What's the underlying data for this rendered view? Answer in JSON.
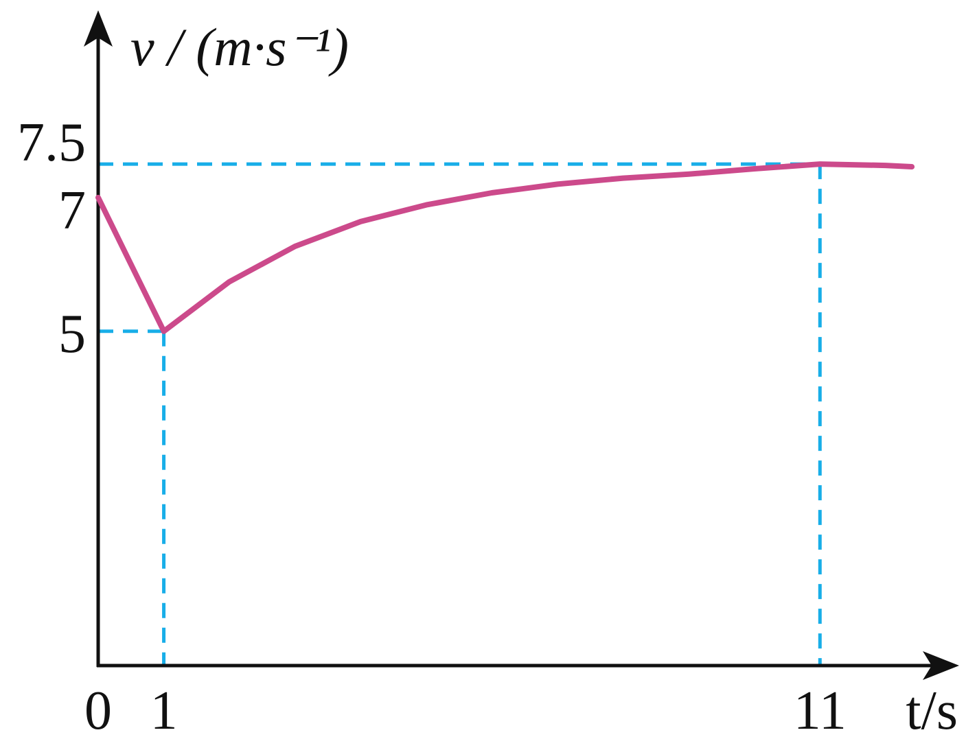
{
  "chart_data": {
    "type": "line",
    "xlabel": "t/s",
    "ylabel": "v / (m·s⁻¹)",
    "series": [
      {
        "color": "#cc4a8b",
        "x": [
          0,
          1,
          2,
          3,
          4,
          5,
          6,
          7,
          8,
          9,
          10,
          11,
          12,
          12.4
        ],
        "values": [
          7,
          5,
          5.74,
          6.27,
          6.64,
          6.89,
          7.07,
          7.2,
          7.29,
          7.35,
          7.43,
          7.5,
          7.48,
          7.46
        ]
      }
    ],
    "xlim": [
      0,
      13.1
    ],
    "ylim": [
      0,
      9.8
    ],
    "xticks": [
      0,
      1,
      11
    ],
    "yticks": [
      5,
      7,
      7.5
    ],
    "guide_color": "#18aee8"
  }
}
